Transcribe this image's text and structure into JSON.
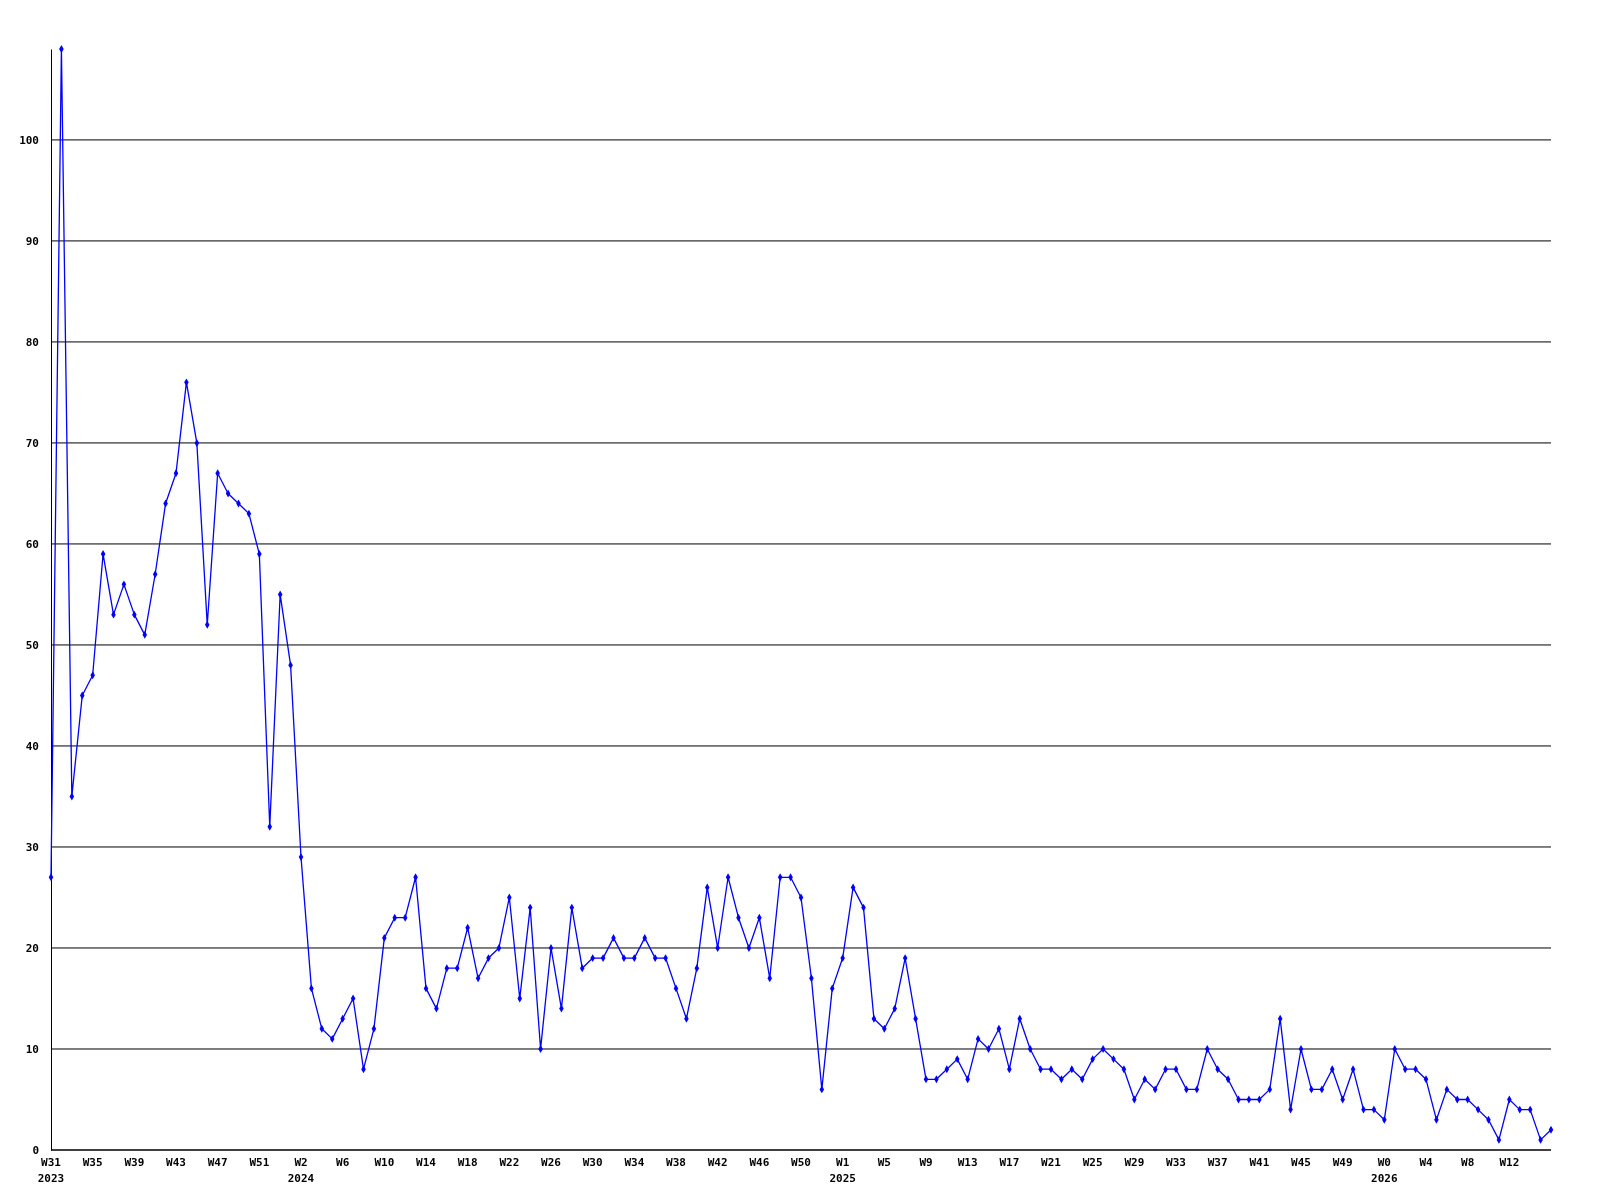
{
  "chart_data": {
    "type": "line",
    "categories": [
      "W31\n2023",
      null,
      null,
      null,
      "W35",
      null,
      null,
      null,
      "W39",
      null,
      null,
      null,
      "W43",
      null,
      null,
      null,
      "W47",
      null,
      null,
      null,
      "W51",
      null,
      null,
      null,
      "W2\n2024",
      null,
      null,
      null,
      "W6",
      null,
      null,
      null,
      "W10",
      null,
      null,
      null,
      "W14",
      null,
      null,
      null,
      "W18",
      null,
      null,
      null,
      "W22",
      null,
      null,
      null,
      "W26",
      null,
      null,
      null,
      "W30",
      null,
      null,
      null,
      "W34",
      null,
      null,
      null,
      "W38",
      null,
      null,
      null,
      "W42",
      null,
      null,
      null,
      "W46",
      null,
      null,
      null,
      "W50",
      null,
      null,
      null,
      "W1\n2025",
      null,
      null,
      null,
      "W5",
      null,
      null,
      null,
      "W9",
      null,
      null,
      null,
      "W13",
      null,
      null,
      null,
      "W17",
      null,
      null,
      null,
      "W21",
      null,
      null,
      null,
      "W25",
      null,
      null,
      null,
      "W29",
      null,
      null,
      null,
      "W33",
      null,
      null,
      null,
      "W37",
      null,
      null,
      null,
      "W41",
      null,
      null,
      null,
      "W45",
      null,
      null,
      null,
      "W49",
      null,
      null,
      null,
      "W0\n2026",
      null,
      null,
      null,
      "W4",
      null,
      null,
      null,
      "W8",
      null,
      null,
      null,
      "W12",
      null,
      null,
      null,
      null
    ],
    "series": [
      {
        "color": "#0000ff",
        "values": [
          27,
          109,
          35,
          45,
          47,
          59,
          53,
          56,
          53,
          51,
          57,
          64,
          67,
          76,
          70,
          52,
          67,
          65,
          64,
          63,
          59,
          32,
          55,
          48,
          29,
          16,
          12,
          11,
          13,
          15,
          8,
          12,
          21,
          23,
          23,
          27,
          16,
          14,
          18,
          18,
          22,
          17,
          19,
          20,
          25,
          15,
          24,
          10,
          20,
          14,
          24,
          18,
          19,
          19,
          21,
          19,
          19,
          21,
          19,
          19,
          16,
          13,
          18,
          26,
          20,
          27,
          23,
          20,
          23,
          17,
          27,
          27,
          25,
          17,
          6,
          16,
          19,
          26,
          24,
          13,
          12,
          14,
          19,
          13,
          7,
          7,
          8,
          9,
          7,
          11,
          10,
          12,
          8,
          13,
          10,
          8,
          8,
          7,
          8,
          7,
          9,
          10,
          9,
          8,
          5,
          7,
          6,
          8,
          8,
          6,
          6,
          10,
          8,
          7,
          5,
          5,
          5,
          6,
          13,
          4,
          10,
          6,
          6,
          8,
          5,
          8,
          4,
          4,
          3,
          10,
          8,
          8,
          7,
          3,
          6,
          5,
          5,
          4,
          3,
          1,
          5,
          4,
          4,
          1,
          2
        ]
      }
    ],
    "ylim": [
      0,
      109
    ],
    "yticks": [
      0,
      10,
      20,
      30,
      40,
      50,
      60,
      70,
      80,
      90,
      100
    ],
    "grid": "y",
    "marker": "diamond",
    "line_style": "solid"
  }
}
